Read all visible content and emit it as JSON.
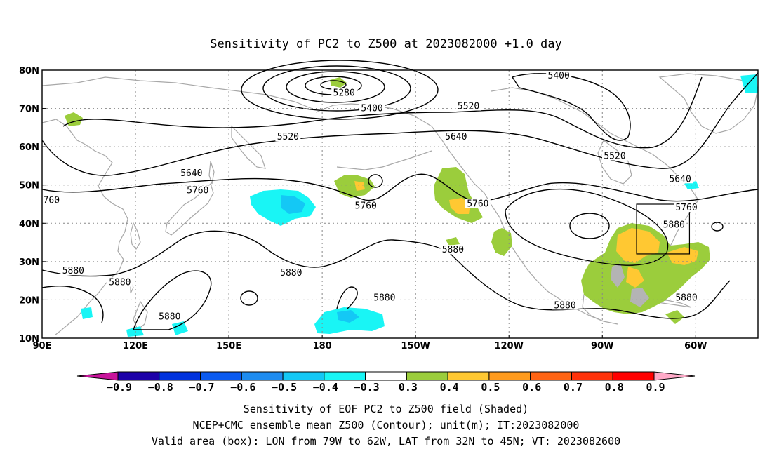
{
  "title": "Sensitivity of PC2 to Z500 at 2023082000 +1.0 day",
  "map": {
    "lat_labels": [
      "80N",
      "70N",
      "60N",
      "50N",
      "40N",
      "30N",
      "20N",
      "10N"
    ],
    "lon_labels": [
      "90E",
      "120E",
      "150E",
      "180",
      "150W",
      "120W",
      "90W",
      "60W"
    ],
    "contour_labels": [
      {
        "text": "5400",
        "lon": 196,
        "lat": 69.5
      },
      {
        "text": "5280",
        "lon": 187,
        "lat": 73.5
      },
      {
        "text": "5400",
        "lon": 256,
        "lat": 78
      },
      {
        "text": "5520",
        "lon": 227,
        "lat": 70
      },
      {
        "text": "5520",
        "lon": 169,
        "lat": 62
      },
      {
        "text": "5640",
        "lon": 223,
        "lat": 62
      },
      {
        "text": "5520",
        "lon": 274,
        "lat": 57
      },
      {
        "text": "5640",
        "lon": 138,
        "lat": 52.5
      },
      {
        "text": "5640",
        "lon": 295,
        "lat": 51
      },
      {
        "text": "5760",
        "lon": 140,
        "lat": 48
      },
      {
        "text": "760",
        "lon": 93,
        "lat": 45.5
      },
      {
        "text": "5760",
        "lon": 194,
        "lat": 44
      },
      {
        "text": "5760",
        "lon": 230,
        "lat": 44.5
      },
      {
        "text": "5760",
        "lon": 297,
        "lat": 43.5
      },
      {
        "text": "5880",
        "lon": 293,
        "lat": 39
      },
      {
        "text": "5880",
        "lon": 222,
        "lat": 32.5
      },
      {
        "text": "5880",
        "lon": 100,
        "lat": 27
      },
      {
        "text": "5880",
        "lon": 170,
        "lat": 26.5
      },
      {
        "text": "5880",
        "lon": 115,
        "lat": 24
      },
      {
        "text": "5880",
        "lon": 200,
        "lat": 20
      },
      {
        "text": "5880",
        "lon": 258,
        "lat": 18
      },
      {
        "text": "5880",
        "lon": 297,
        "lat": 20
      },
      {
        "text": "5880",
        "lon": 131,
        "lat": 15
      }
    ],
    "valid_box": {
      "lon_min": 281,
      "lon_max": 298,
      "lat_min": 32,
      "lat_max": 45
    }
  },
  "colorbar": {
    "labels": [
      "−0.9",
      "−0.8",
      "−0.7",
      "−0.6",
      "−0.5",
      "−0.4",
      "−0.3",
      "0.3",
      "0.4",
      "0.5",
      "0.6",
      "0.7",
      "0.8",
      "0.9"
    ],
    "colors": [
      "#1c00a8",
      "#0032dc",
      "#0a5af0",
      "#1e8cf0",
      "#14c8f5",
      "#19f5f5",
      "#ffffff",
      "#9bcd3c",
      "#ffc832",
      "#ff9b1e",
      "#ff6414",
      "#ff320a",
      "#ff0000"
    ],
    "low_arrow_color": "#c8149b",
    "high_arrow_color": "#ffaac8"
  },
  "captions": [
    "Sensitivity of EOF PC2 to Z500 field (Shaded)",
    "NCEP+CMC ensemble mean Z500 (Contour); unit(m); IT:2023082000",
    "Valid area (box): LON from 79W to 62W, LAT from 32N to 45N; VT: 2023082600"
  ]
}
